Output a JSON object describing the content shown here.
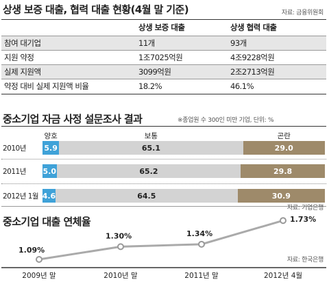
{
  "section1": {
    "title": "상생 보증 대출, 협력 대출 현황(4월 말 기준)",
    "source": "자료: 금융위원회",
    "columns": [
      "",
      "상생 보증 대출",
      "상생 협력 대출"
    ],
    "rows": [
      [
        "참여 대기업",
        "11개",
        "93개"
      ],
      [
        "지원 약정",
        "1조7025억원",
        "4조9228억원"
      ],
      [
        "실제 지원액",
        "3099억원",
        "2조2713억원"
      ],
      [
        "약정 대비 실제 지원액 비율",
        "18.2%",
        "46.1%"
      ]
    ]
  },
  "section2": {
    "title": "중소기업 자금 사정 설문조사 결과",
    "note": "※종업원 수 300인 미만 기업, 단위: %",
    "source": "자료: 기업은행",
    "colors": {
      "good": "#3fa2d8",
      "normal": "#d3d3d3",
      "bad": "#9e8a6a"
    }
  },
  "section3": {
    "title": "중소기업 대출 연체율",
    "source": "자료: 한국은행"
  },
  "chart_data": [
    {
      "type": "bar",
      "stacked": true,
      "orientation": "horizontal",
      "categories": [
        "2010년",
        "2011년",
        "2012년 1월"
      ],
      "series": [
        {
          "name": "양호",
          "values": [
            5.9,
            5.0,
            4.6
          ],
          "labels": [
            "5.9",
            "5.0",
            "4.6"
          ]
        },
        {
          "name": "보통",
          "values": [
            65.1,
            65.2,
            64.5
          ],
          "labels": [
            "65.1",
            "65.2",
            "64.5"
          ]
        },
        {
          "name": "곤란",
          "values": [
            29.0,
            29.8,
            30.9
          ],
          "labels": [
            "29.0",
            "29.8",
            "30.9"
          ]
        }
      ]
    },
    {
      "type": "line",
      "categories": [
        "2009년 말",
        "2010년 말",
        "2011년 말",
        "2012년 4월"
      ],
      "values": [
        1.09,
        1.3,
        1.34,
        1.73
      ],
      "labels": [
        "1.09%",
        "1.30%",
        "1.34%",
        "1.73%"
      ],
      "color": "#aaaaaa"
    }
  ]
}
